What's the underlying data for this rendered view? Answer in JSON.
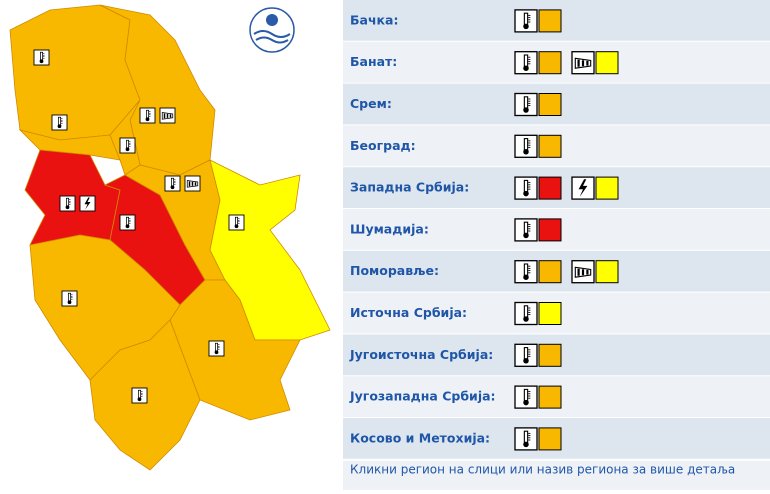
{
  "regions": [
    {
      "name": "Бачка:",
      "warnings": [
        {
          "type": "temperature",
          "color": "#f9b800"
        }
      ]
    },
    {
      "name": "Банат:",
      "warnings": [
        {
          "type": "temperature",
          "color": "#f9b800"
        },
        {
          "type": "wind",
          "color": "#ffff00"
        }
      ]
    },
    {
      "name": "Срем:",
      "warnings": [
        {
          "type": "temperature",
          "color": "#f9b800"
        }
      ]
    },
    {
      "name": "Београд:",
      "warnings": [
        {
          "type": "temperature",
          "color": "#f9b800"
        }
      ]
    },
    {
      "name": "Западна Србија:",
      "warnings": [
        {
          "type": "temperature",
          "color": "#ea1111"
        },
        {
          "type": "storm",
          "color": "#ffff00"
        }
      ]
    },
    {
      "name": "Шумадија:",
      "warnings": [
        {
          "type": "temperature",
          "color": "#ea1111"
        }
      ]
    },
    {
      "name": "Поморавље:",
      "warnings": [
        {
          "type": "temperature",
          "color": "#f9b800"
        },
        {
          "type": "wind",
          "color": "#ffff00"
        }
      ]
    },
    {
      "name": "Источна Србија:",
      "warnings": [
        {
          "type": "temperature",
          "color": "#ffff00"
        }
      ]
    },
    {
      "name": "Југоисточна Србија:",
      "warnings": [
        {
          "type": "temperature",
          "color": "#f9b800"
        }
      ]
    },
    {
      "name": "Југозападна Србија:",
      "warnings": [
        {
          "type": "temperature",
          "color": "#f9b800"
        }
      ]
    },
    {
      "name": "Косово и Метохија:",
      "warnings": [
        {
          "type": "temperature",
          "color": "#f9b800"
        }
      ]
    }
  ],
  "footer": "Кликни регион на слици или назив региона за више детаља"
}
